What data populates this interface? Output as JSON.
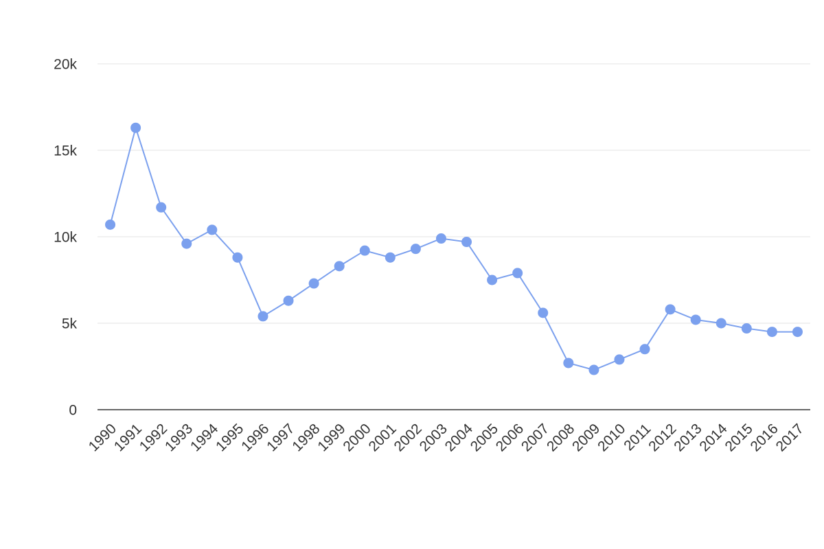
{
  "chart_data": {
    "type": "line",
    "categories": [
      "1990",
      "1991",
      "1992",
      "1993",
      "1994",
      "1995",
      "1996",
      "1997",
      "1998",
      "1999",
      "2000",
      "2001",
      "2002",
      "2003",
      "2004",
      "2005",
      "2006",
      "2007",
      "2008",
      "2009",
      "2010",
      "2011",
      "2012",
      "2013",
      "2014",
      "2015",
      "2016",
      "2017"
    ],
    "values": [
      10700,
      16300,
      11700,
      9600,
      10400,
      8800,
      5400,
      6300,
      7300,
      8300,
      9200,
      8800,
      9300,
      9900,
      9700,
      7500,
      7900,
      5600,
      2700,
      2300,
      2900,
      3500,
      5800,
      5200,
      5000,
      4700,
      4500,
      4500
    ],
    "color": "#7ba0ee",
    "ylim": [
      0,
      20000
    ],
    "yticks": [
      0,
      {
        "value": 5000,
        "label": "5k"
      },
      {
        "value": 10000,
        "label": "10k"
      },
      {
        "value": 15000,
        "label": "15k"
      },
      {
        "value": 20000,
        "label": "20k"
      }
    ],
    "grid": true
  }
}
